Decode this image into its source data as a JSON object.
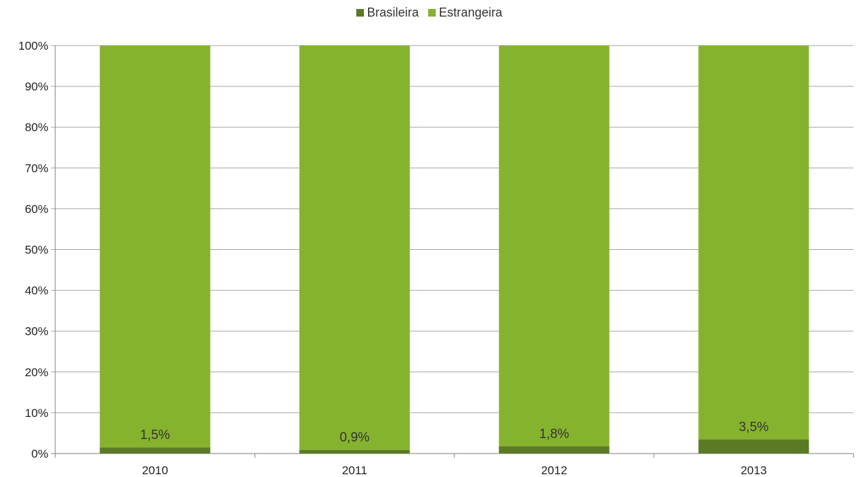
{
  "colors": {
    "brasileira": "#5b7a24",
    "estrangeira": "#86b32e",
    "grid": "#a6a6a6",
    "axis": "#7f7f7f"
  },
  "chart_data": {
    "type": "bar",
    "stacked": true,
    "categories": [
      "2010",
      "2011",
      "2012",
      "2013"
    ],
    "series": [
      {
        "name": "Brasileira",
        "values": [
          1.5,
          0.9,
          1.8,
          3.5
        ],
        "labels": [
          "1,5%",
          "0,9%",
          "1,8%",
          "3,5%"
        ]
      },
      {
        "name": "Estrangeira",
        "values": [
          98.5,
          99.1,
          98.2,
          96.5
        ]
      }
    ],
    "ylim": [
      0,
      100
    ],
    "yticks": [
      "0%",
      "10%",
      "20%",
      "30%",
      "40%",
      "50%",
      "60%",
      "70%",
      "80%",
      "90%",
      "100%"
    ],
    "grid": true,
    "legend_position": "top"
  }
}
